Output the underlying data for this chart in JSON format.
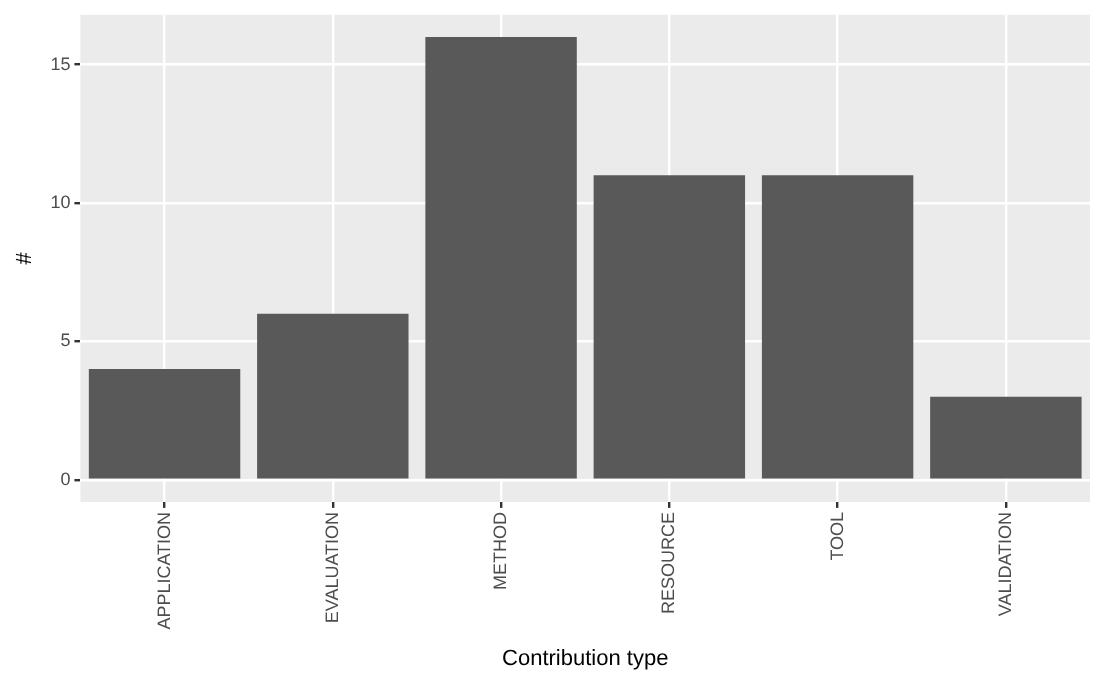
{
  "chart_data": {
    "type": "bar",
    "xlabel": "Contribution type",
    "ylabel": "#",
    "categories": [
      "APPLICATION",
      "EVALUATION",
      "METHOD",
      "RESOURCE",
      "TOOL",
      "VALIDATION"
    ],
    "values": [
      4,
      6,
      16,
      11,
      11,
      3
    ],
    "color": "#595959",
    "ylim": [
      -0.8,
      16.8
    ],
    "yticks": [
      0,
      5,
      10,
      15
    ],
    "grid": true,
    "legend": false
  }
}
